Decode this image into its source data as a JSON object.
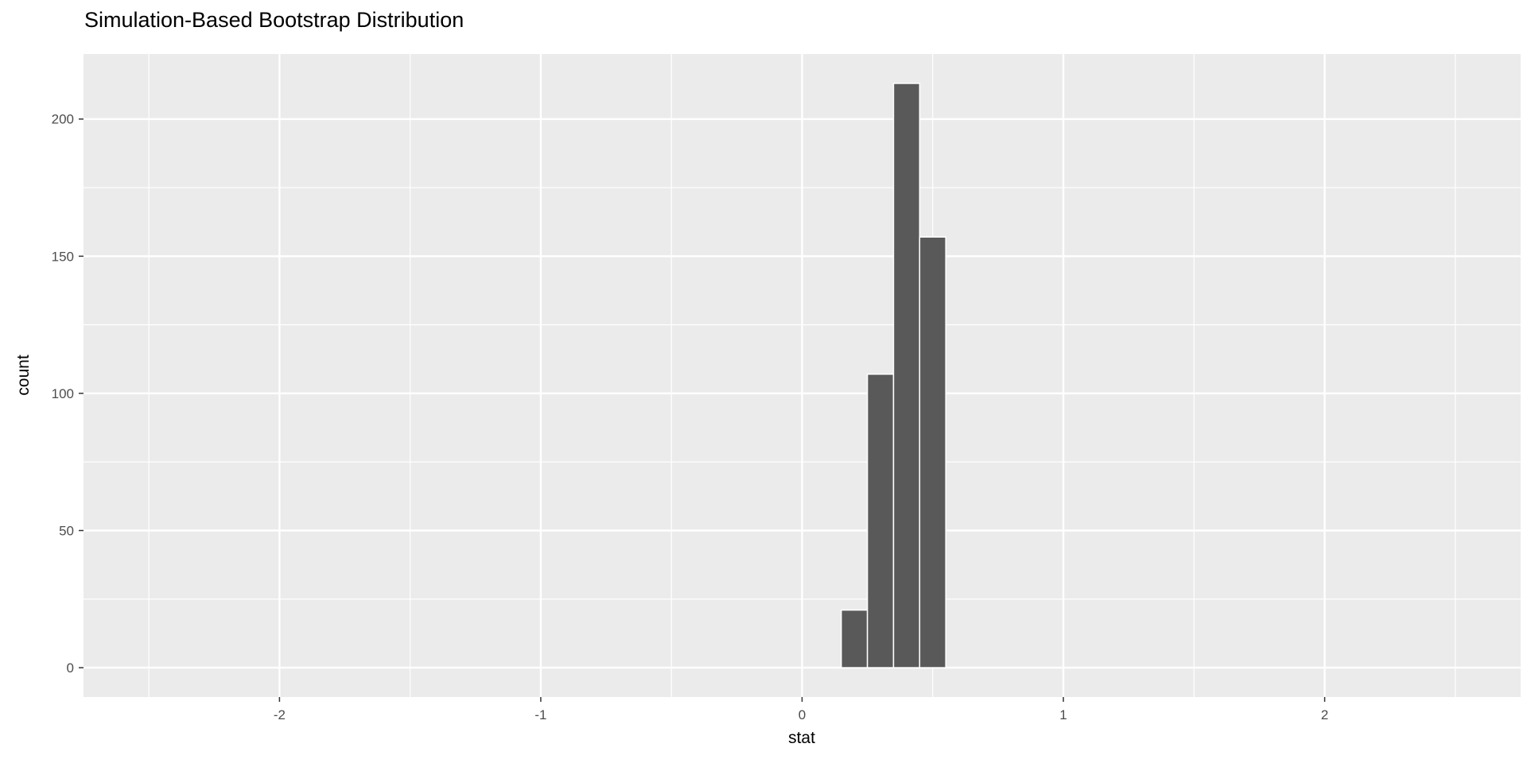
{
  "chart_data": {
    "type": "bar",
    "subtype": "histogram",
    "title": "Simulation-Based Bootstrap Distribution",
    "xlabel": "stat",
    "ylabel": "count",
    "xlim": [
      -2.75,
      2.75
    ],
    "ylim": [
      -10.7,
      223.7
    ],
    "x_major_ticks": [
      -2,
      -1,
      0,
      1,
      2
    ],
    "x_minor_ticks": [
      -2.5,
      -1.5,
      -0.5,
      0.5,
      1.5,
      2.5
    ],
    "y_major_ticks": [
      0,
      50,
      100,
      150,
      200
    ],
    "y_minor_ticks": [
      25,
      75,
      125,
      175
    ],
    "bin_width": 0.1,
    "bars": [
      {
        "x0": 0.15,
        "x1": 0.25,
        "count": 21
      },
      {
        "x0": 0.25,
        "x1": 0.35,
        "count": 107
      },
      {
        "x0": 0.35,
        "x1": 0.45,
        "count": 213
      },
      {
        "x0": 0.45,
        "x1": 0.55,
        "count": 157
      }
    ],
    "grid": "on",
    "legend": "none",
    "colors": {
      "figure_background": "#FFFFFF",
      "panel_background": "#EBEBEB",
      "grid": "#FFFFFF",
      "bar_fill": "#595959",
      "bar_stroke": "#FFFFFF",
      "tick_label": "#4D4D4D",
      "tick_mark": "#333333",
      "text": "#000000"
    }
  }
}
